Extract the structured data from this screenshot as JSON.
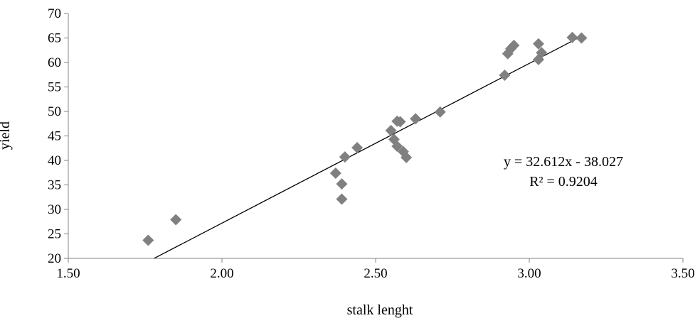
{
  "chart_data": {
    "type": "scatter",
    "title": "",
    "xlabel": "stalk lenght",
    "ylabel": "yield",
    "xlim": [
      1.5,
      3.5
    ],
    "ylim": [
      20,
      70
    ],
    "x_ticks": [
      "1.50",
      "2.00",
      "2.50",
      "3.00",
      "3.50"
    ],
    "y_ticks": [
      "20",
      "25",
      "30",
      "35",
      "40",
      "45",
      "50",
      "55",
      "60",
      "65",
      "70"
    ],
    "grid": false,
    "legend": "none",
    "marker": "diamond",
    "marker_color": "#808080",
    "points": [
      {
        "x": 1.76,
        "y": 23.7
      },
      {
        "x": 1.85,
        "y": 27.9
      },
      {
        "x": 2.37,
        "y": 37.4
      },
      {
        "x": 2.39,
        "y": 35.2
      },
      {
        "x": 2.39,
        "y": 32.1
      },
      {
        "x": 2.4,
        "y": 40.7
      },
      {
        "x": 2.44,
        "y": 42.6
      },
      {
        "x": 2.55,
        "y": 46.1
      },
      {
        "x": 2.56,
        "y": 44.3
      },
      {
        "x": 2.57,
        "y": 42.9
      },
      {
        "x": 2.57,
        "y": 48.0
      },
      {
        "x": 2.58,
        "y": 47.9
      },
      {
        "x": 2.59,
        "y": 41.8
      },
      {
        "x": 2.6,
        "y": 40.6
      },
      {
        "x": 2.63,
        "y": 48.5
      },
      {
        "x": 2.71,
        "y": 49.9
      },
      {
        "x": 2.92,
        "y": 57.4
      },
      {
        "x": 2.93,
        "y": 61.8
      },
      {
        "x": 2.94,
        "y": 62.8
      },
      {
        "x": 2.95,
        "y": 63.5
      },
      {
        "x": 3.03,
        "y": 63.8
      },
      {
        "x": 3.03,
        "y": 60.6
      },
      {
        "x": 3.04,
        "y": 62.0
      },
      {
        "x": 3.14,
        "y": 65.1
      },
      {
        "x": 3.17,
        "y": 65.0
      }
    ],
    "trendline": {
      "slope": 32.612,
      "intercept": -38.027,
      "x_range": [
        1.78,
        3.17
      ],
      "color": "#000000"
    },
    "annotations": {
      "equation": "y = 32.612x - 38.027",
      "r_squared": "R² = 0.9204"
    }
  }
}
